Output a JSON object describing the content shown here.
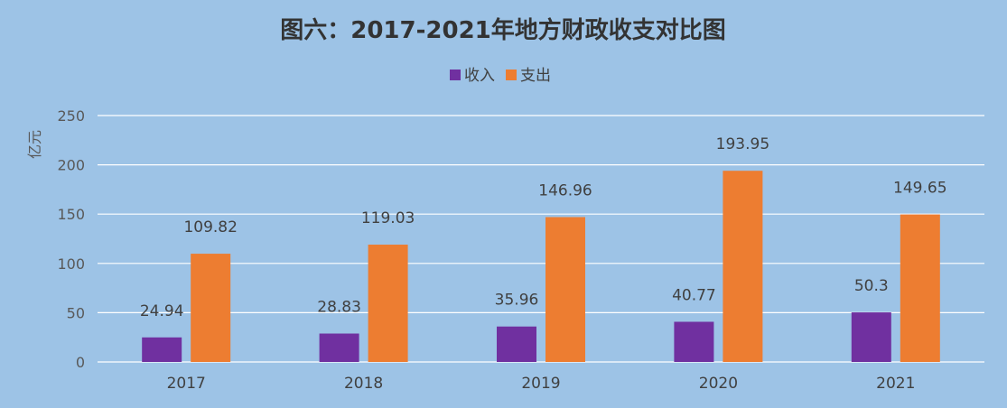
{
  "chart_data": {
    "type": "bar",
    "title": "图六：2017-2021年地方财政收支对比图",
    "ylabel": "亿元",
    "xlabel": "",
    "categories": [
      "2017",
      "2018",
      "2019",
      "2020",
      "2021"
    ],
    "series": [
      {
        "name": "收入",
        "color": "#7030a0",
        "values": [
          24.94,
          28.83,
          35.96,
          40.77,
          50.3
        ]
      },
      {
        "name": "支出",
        "color": "#ed7d31",
        "values": [
          109.82,
          119.03,
          146.96,
          193.95,
          149.65
        ]
      }
    ],
    "ylim": [
      0,
      250
    ],
    "yticks": [
      0,
      50,
      100,
      150,
      200,
      250
    ],
    "grid": true,
    "legend_position": "top-center",
    "background": "#9dc3e6",
    "gridline_color": "#ffffff"
  }
}
